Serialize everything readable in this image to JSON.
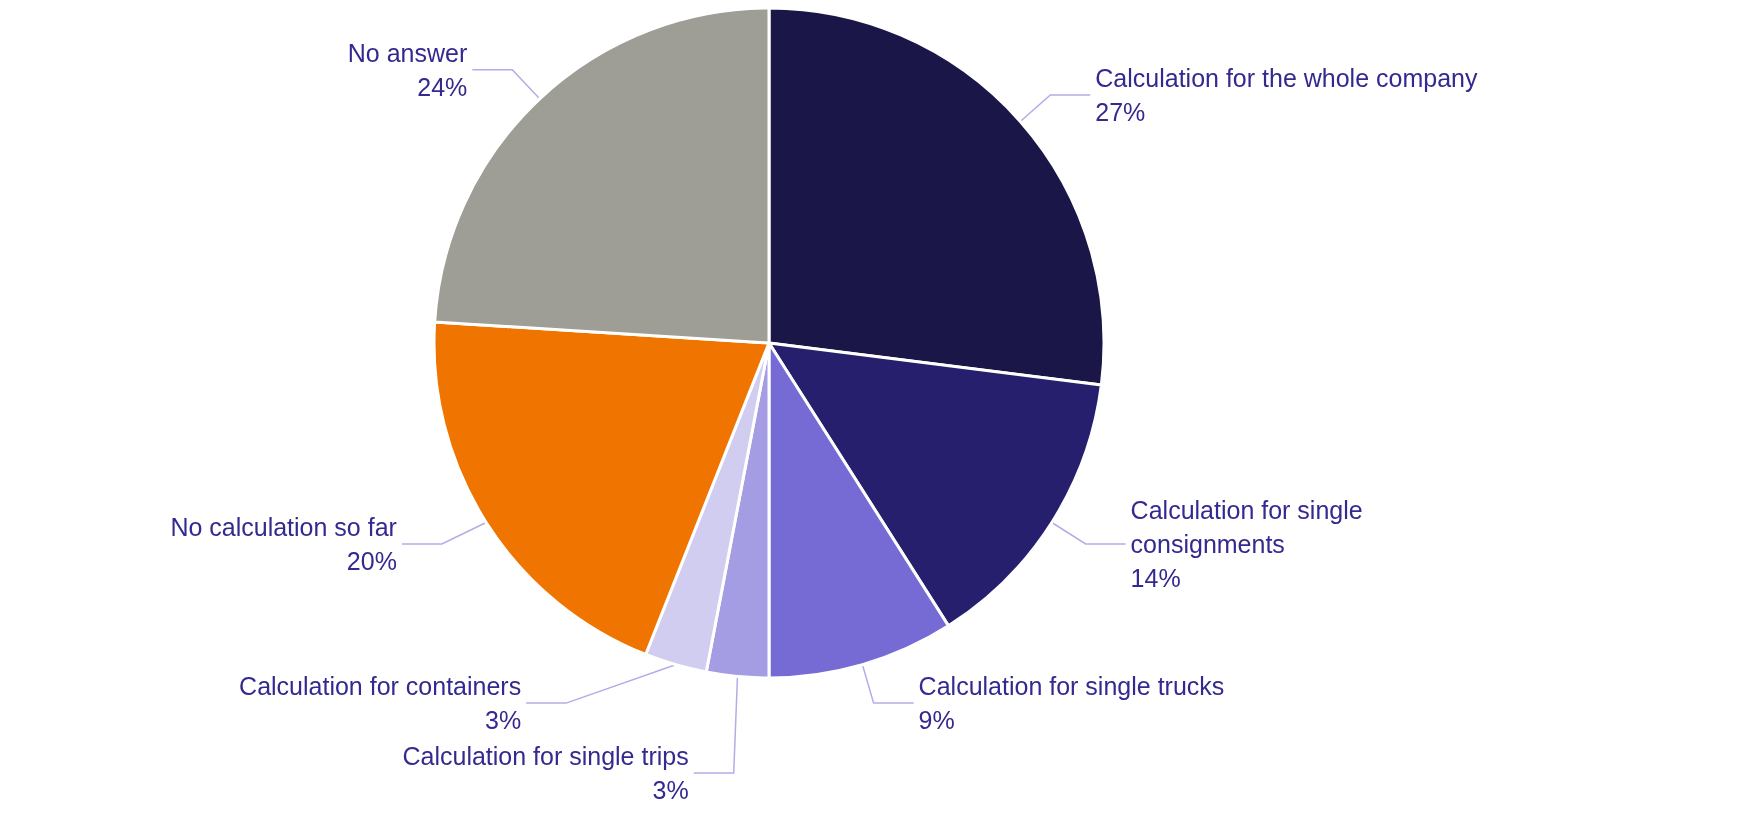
{
  "chart_data": {
    "type": "pie",
    "categories": [
      "Calculation for the whole company",
      "Calculation for single consignments",
      "Calculation for single trucks",
      "Calculation for single trips",
      "Calculation for containers",
      "No calculation so far",
      "No answer"
    ],
    "values": [
      27,
      14,
      9,
      3,
      3,
      20,
      24
    ],
    "value_labels": [
      "27%",
      "14%",
      "9%",
      "3%",
      "3%",
      "20%",
      "24%"
    ],
    "colors": [
      "#1a1748",
      "#261f6e",
      "#766bd4",
      "#a49de3",
      "#d1cdf0",
      "#f07500",
      "#9e9e96"
    ],
    "legend": false
  }
}
